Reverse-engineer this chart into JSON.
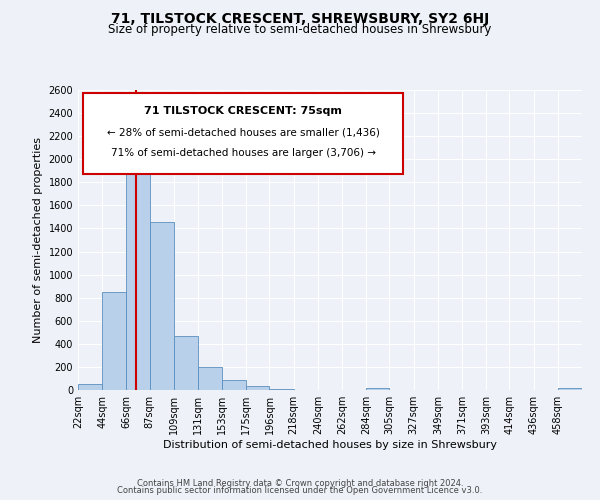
{
  "title": "71, TILSTOCK CRESCENT, SHREWSBURY, SY2 6HJ",
  "subtitle": "Size of property relative to semi-detached houses in Shrewsbury",
  "xlabel": "Distribution of semi-detached houses by size in Shrewsbury",
  "ylabel": "Number of semi-detached properties",
  "bar_labels": [
    "22sqm",
    "44sqm",
    "66sqm",
    "87sqm",
    "109sqm",
    "131sqm",
    "153sqm",
    "175sqm",
    "196sqm",
    "218sqm",
    "240sqm",
    "262sqm",
    "284sqm",
    "305sqm",
    "327sqm",
    "349sqm",
    "371sqm",
    "393sqm",
    "414sqm",
    "436sqm",
    "458sqm"
  ],
  "bar_values": [
    50,
    850,
    2060,
    1460,
    470,
    200,
    90,
    35,
    10,
    0,
    0,
    0,
    15,
    0,
    0,
    0,
    0,
    0,
    0,
    0,
    20
  ],
  "bar_color": "#b8d0ea",
  "bar_edgecolor": "#5a8fc0",
  "property_line_x": 75,
  "property_line_label": "71 TILSTOCK CRESCENT: 75sqm",
  "annotation_line1": "← 28% of semi-detached houses are smaller (1,436)",
  "annotation_line2": "71% of semi-detached houses are larger (3,706) →",
  "box_facecolor": "#ffffff",
  "box_edgecolor": "#cc0000",
  "line_color": "#cc0000",
  "ylim": [
    0,
    2600
  ],
  "yticks": [
    0,
    200,
    400,
    600,
    800,
    1000,
    1200,
    1400,
    1600,
    1800,
    2000,
    2200,
    2400,
    2600
  ],
  "footer1": "Contains HM Land Registry data © Crown copyright and database right 2024.",
  "footer2": "Contains public sector information licensed under the Open Government Licence v3.0.",
  "bg_color": "#eef2f8",
  "grid_color": "#ffffff",
  "title_fontsize": 10,
  "subtitle_fontsize": 8.5,
  "axis_label_fontsize": 8,
  "tick_fontsize": 7,
  "annotation_fontsize": 7.5,
  "footer_fontsize": 6,
  "bin_edges": [
    22,
    44,
    66,
    87,
    109,
    131,
    153,
    175,
    196,
    218,
    240,
    262,
    284,
    305,
    327,
    349,
    371,
    393,
    414,
    436,
    458,
    480
  ]
}
